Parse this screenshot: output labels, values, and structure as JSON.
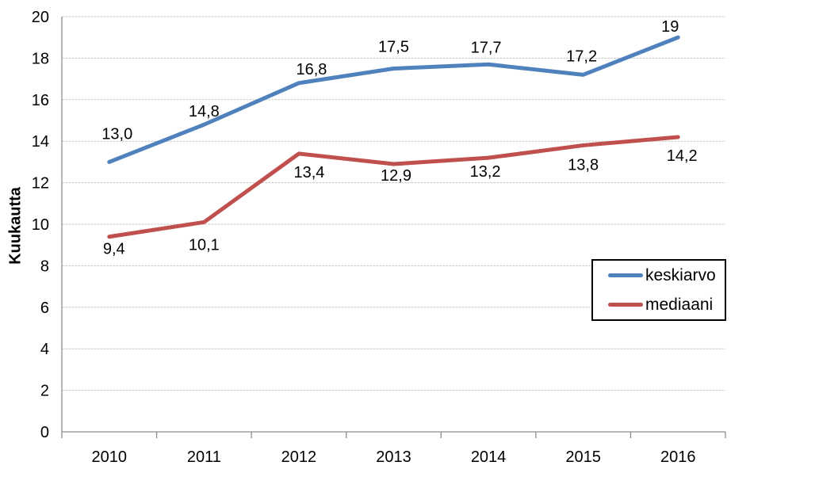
{
  "chart_data": {
    "type": "line",
    "title": "",
    "xlabel": "",
    "ylabel": "Kuukautta",
    "categories": [
      "2010",
      "2011",
      "2012",
      "2013",
      "2014",
      "2015",
      "2016"
    ],
    "ylim": [
      0,
      20
    ],
    "yticks": [
      0,
      2,
      4,
      6,
      8,
      10,
      12,
      14,
      16,
      18,
      20
    ],
    "grid": true,
    "legend_position": "inside-right",
    "series": [
      {
        "name": "keskiarvo",
        "color": "#4F81BD",
        "values": [
          13.0,
          14.8,
          16.8,
          17.5,
          17.7,
          17.2,
          19.0
        ],
        "labels": [
          "13,0",
          "14,8",
          "16,8",
          "17,5",
          "17,7",
          "17,2",
          "19"
        ],
        "label_position": "above"
      },
      {
        "name": "mediaani",
        "color": "#C0504D",
        "values": [
          9.4,
          10.1,
          13.4,
          12.9,
          13.2,
          13.8,
          14.2
        ],
        "labels": [
          "9,4",
          "10,1",
          "13,4",
          "12,9",
          "13,2",
          "13,8",
          "14,2"
        ],
        "label_position": "below"
      }
    ],
    "colors": {
      "gridline": "#C9C9C9",
      "axis": "#8C8C8C",
      "text": "#000000",
      "background": "#FFFFFF"
    }
  }
}
